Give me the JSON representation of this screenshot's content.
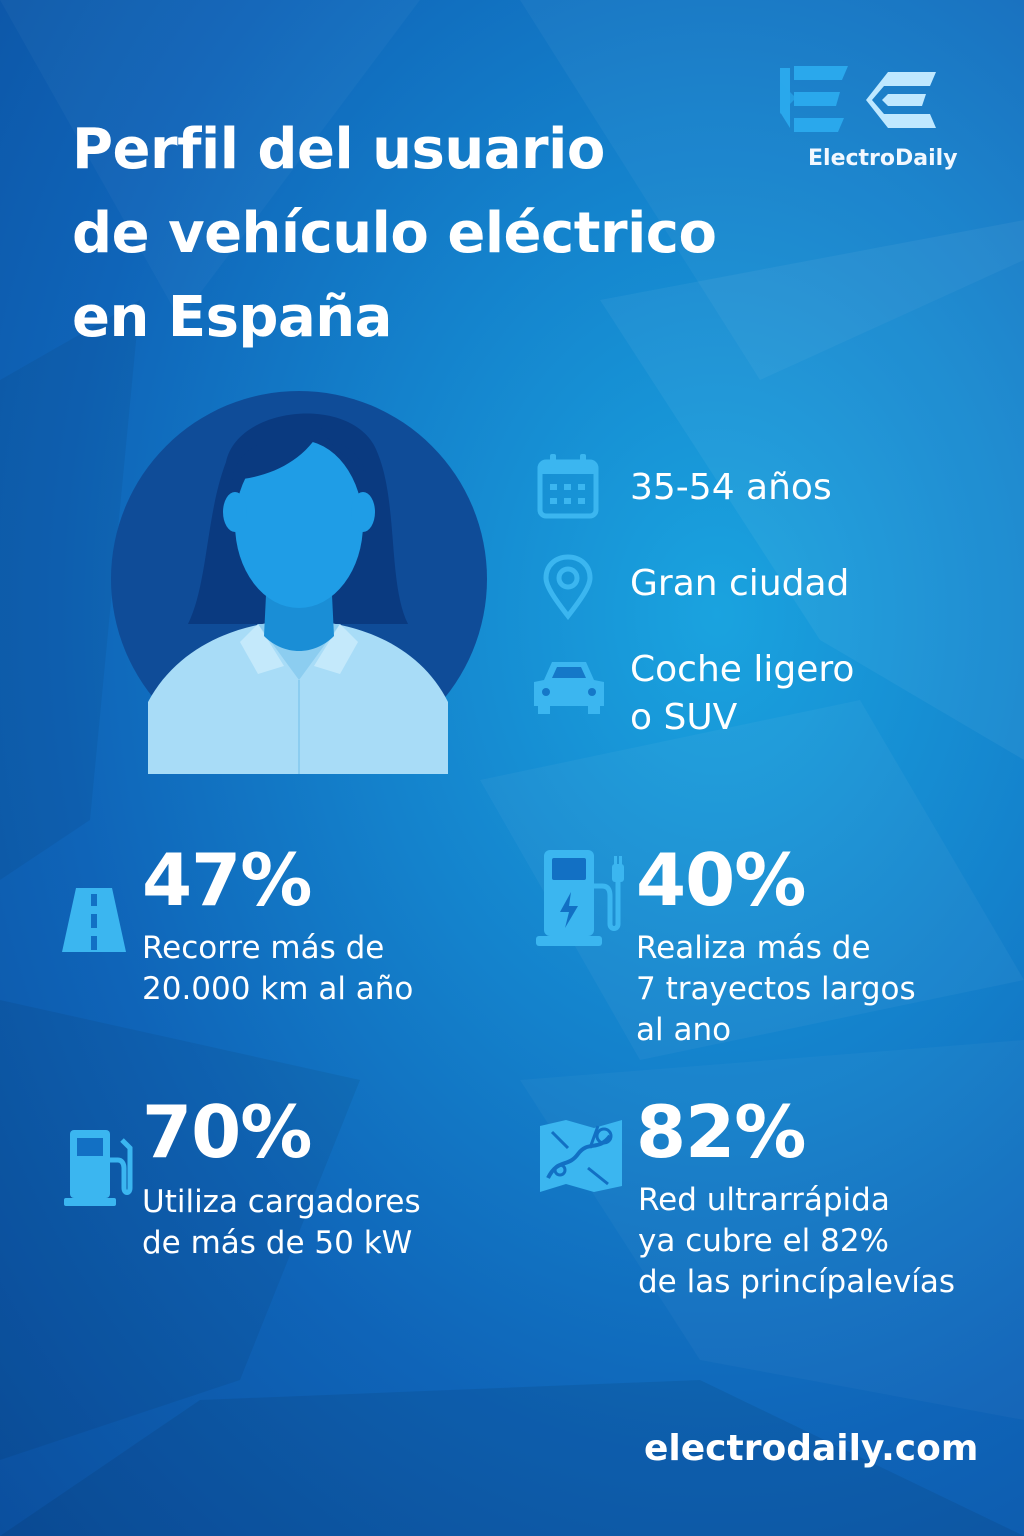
{
  "title_lines": [
    "Perfil del usuario",
    "de vehículo eléctrico",
    "en España"
  ],
  "logo": {
    "name": "ElectroDaily",
    "icon": "electrodaily-e-logo-icon"
  },
  "profile": {
    "avatar_icon": "woman-avatar-icon",
    "facts": [
      {
        "icon": "calendar-icon",
        "lines": [
          "35-54 años"
        ]
      },
      {
        "icon": "location-pin-icon",
        "lines": [
          "Gran ciudad"
        ]
      },
      {
        "icon": "car-icon",
        "lines": [
          "Coche ligero",
          "o SUV"
        ]
      }
    ]
  },
  "stats": [
    {
      "icon": "road-icon",
      "percent": "47%",
      "lines": [
        "Recorre más de",
        "20.000 km al año"
      ]
    },
    {
      "icon": "ev-charger-icon",
      "percent": "40%",
      "lines": [
        "Realiza más de",
        "7 trayectos largos",
        "al ano"
      ]
    },
    {
      "icon": "fuel-pump-icon",
      "percent": "70%",
      "lines": [
        "Utiliza cargadores",
        "de más de 50 kW"
      ]
    },
    {
      "icon": "map-route-icon",
      "percent": "82%",
      "lines": [
        "Red ultrarrápida",
        "ya cubre el 82%",
        "de las princípalevías"
      ]
    }
  ],
  "footer": {
    "url": "electrodaily.com"
  },
  "colors": {
    "background_light": "#1aa3df",
    "background_dark": "#0b4f9e",
    "icon": "#3bb6f0",
    "avatar_circle": "#0f4c98",
    "avatar_hair": "#0a3a80",
    "avatar_skin": "#1f9de6",
    "avatar_shirt": "#a8dcf7",
    "text": "#ffffff"
  }
}
